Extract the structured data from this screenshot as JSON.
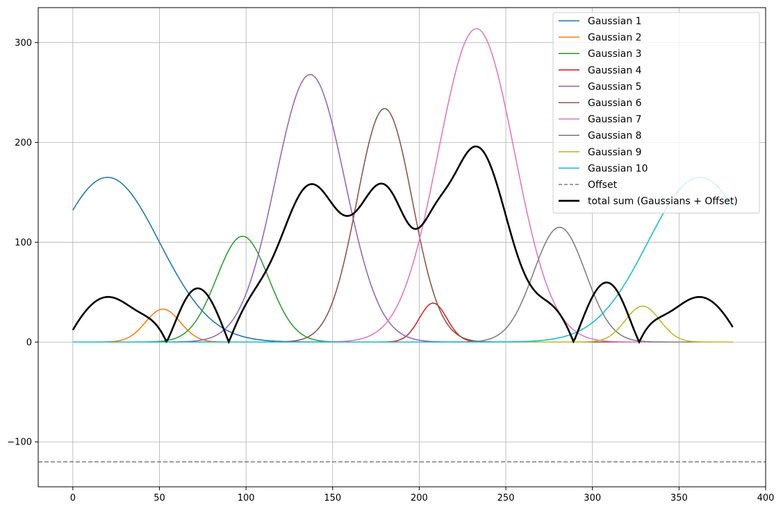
{
  "chart_data": {
    "type": "line",
    "title": "",
    "xlabel": "",
    "ylabel": "",
    "xlim": [
      -20,
      400
    ],
    "ylim": [
      -145,
      335
    ],
    "grid": true,
    "legend_position": "top-right",
    "x_ticks": [
      0,
      50,
      100,
      150,
      200,
      250,
      300,
      350,
      400
    ],
    "y_ticks": [
      -100,
      0,
      100,
      200,
      300
    ],
    "x_range": [
      0,
      381
    ],
    "series": [
      {
        "name": "Gaussian 1",
        "color": "#1f77b4",
        "amplitude": 165,
        "center": 20,
        "sigma": 30
      },
      {
        "name": "Gaussian 2",
        "color": "#ff7f0e",
        "amplitude": 33,
        "center": 52,
        "sigma": 10
      },
      {
        "name": "Gaussian 3",
        "color": "#2ca02c",
        "amplitude": 106,
        "center": 98,
        "sigma": 15
      },
      {
        "name": "Gaussian 4",
        "color": "#d62728",
        "amplitude": 39,
        "center": 208,
        "sigma": 8
      },
      {
        "name": "Gaussian 5",
        "color": "#9467bd",
        "amplitude": 268,
        "center": 137,
        "sigma": 20
      },
      {
        "name": "Gaussian 6",
        "color": "#8c564b",
        "amplitude": 234,
        "center": 180,
        "sigma": 16
      },
      {
        "name": "Gaussian 7",
        "color": "#e377c2",
        "amplitude": 314,
        "center": 233,
        "sigma": 22
      },
      {
        "name": "Gaussian 8",
        "color": "#7f7f7f",
        "amplitude": 115,
        "center": 281,
        "sigma": 15
      },
      {
        "name": "Gaussian 9",
        "color": "#bcbd22",
        "amplitude": 36,
        "center": 329,
        "sigma": 10
      },
      {
        "name": "Gaussian 10",
        "color": "#17becf",
        "amplitude": 165,
        "center": 362,
        "sigma": 30
      }
    ],
    "offset": {
      "name": "Offset",
      "value": -120,
      "color": "#7f7f7f",
      "style": "dashed"
    },
    "total": {
      "name": "total sum (Gaussians + Offset)",
      "color": "#000000"
    }
  }
}
